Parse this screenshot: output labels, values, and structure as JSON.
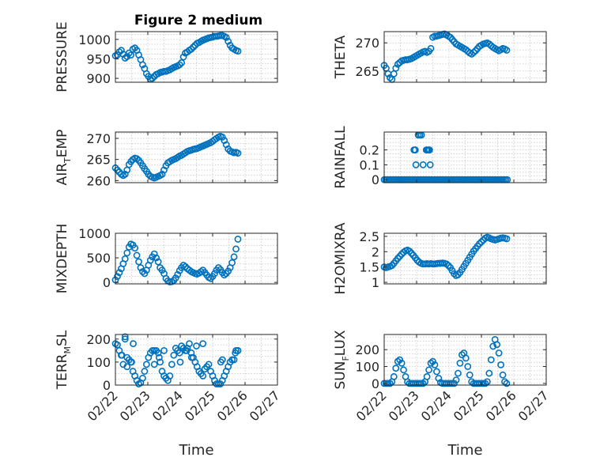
{
  "figure": {
    "title": "Figure 2 medium"
  },
  "chart_data": [
    {
      "type": "scatter",
      "ylabel": "PRESSURE",
      "xlim": [
        0,
        5
      ],
      "ylim": [
        890,
        1020
      ],
      "yticks": [
        900,
        950,
        1000
      ],
      "x": [
        0.0,
        0.06,
        0.12,
        0.18,
        0.24,
        0.3,
        0.36,
        0.42,
        0.48,
        0.54,
        0.6,
        0.66,
        0.72,
        0.78,
        0.84,
        0.9,
        0.96,
        1.02,
        1.08,
        1.14,
        1.2,
        1.26,
        1.32,
        1.38,
        1.44,
        1.5,
        1.56,
        1.62,
        1.68,
        1.74,
        1.8,
        1.86,
        1.92,
        1.98,
        2.04,
        2.1,
        2.16,
        2.22,
        2.28,
        2.34,
        2.4,
        2.46,
        2.52,
        2.58,
        2.64,
        2.7,
        2.76,
        2.82,
        2.88,
        2.94,
        3.0,
        3.06,
        3.12,
        3.18,
        3.24,
        3.3,
        3.36,
        3.42,
        3.48,
        3.54,
        3.6,
        3.66,
        3.72,
        3.78
      ],
      "y": [
        958,
        960,
        968,
        972,
        962,
        952,
        956,
        965,
        960,
        975,
        978,
        972,
        960,
        948,
        935,
        925,
        912,
        905,
        898,
        900,
        905,
        910,
        912,
        915,
        916,
        918,
        918,
        920,
        922,
        925,
        928,
        930,
        932,
        935,
        940,
        955,
        965,
        968,
        972,
        975,
        980,
        985,
        990,
        992,
        995,
        998,
        1000,
        1002,
        1004,
        1005,
        1006,
        1008,
        1008,
        1009,
        1010,
        1010,
        1008,
        1005,
        995,
        985,
        978,
        975,
        972,
        970
      ]
    },
    {
      "type": "scatter",
      "ylabel": "THETA",
      "xlim": [
        0,
        5
      ],
      "ylim": [
        263,
        272
      ],
      "yticks": [
        265,
        270
      ],
      "x": [
        0.0,
        0.06,
        0.12,
        0.18,
        0.24,
        0.3,
        0.36,
        0.42,
        0.48,
        0.54,
        0.6,
        0.66,
        0.72,
        0.78,
        0.84,
        0.9,
        0.96,
        1.02,
        1.08,
        1.14,
        1.2,
        1.26,
        1.32,
        1.38,
        1.44,
        1.5,
        1.56,
        1.62,
        1.68,
        1.74,
        1.8,
        1.86,
        1.92,
        1.98,
        2.04,
        2.1,
        2.16,
        2.22,
        2.28,
        2.34,
        2.4,
        2.46,
        2.52,
        2.58,
        2.64,
        2.7,
        2.76,
        2.82,
        2.88,
        2.94,
        3.0,
        3.06,
        3.12,
        3.18,
        3.24,
        3.3,
        3.36,
        3.42,
        3.48,
        3.54,
        3.6,
        3.66,
        3.72,
        3.78
      ],
      "y": [
        266.0,
        265.5,
        264.5,
        263.8,
        263.5,
        264.5,
        265.5,
        266.2,
        266.5,
        266.8,
        266.9,
        267.0,
        267.0,
        267.1,
        267.2,
        267.4,
        267.6,
        267.8,
        268.0,
        268.2,
        268.4,
        268.5,
        268.3,
        268.5,
        269.0,
        271.0,
        271.2,
        271.2,
        271.3,
        271.4,
        271.5,
        271.6,
        271.4,
        271.2,
        271.0,
        270.6,
        270.2,
        269.8,
        269.6,
        269.4,
        269.2,
        269.0,
        268.8,
        268.5,
        268.2,
        268.0,
        268.3,
        268.6,
        269.0,
        269.4,
        269.6,
        269.8,
        269.9,
        270.0,
        269.8,
        269.5,
        269.2,
        269.0,
        268.8,
        268.6,
        268.8,
        269.0,
        268.9,
        268.7
      ]
    },
    {
      "type": "scatter",
      "ylabel": "AIR",
      "ylabel_sub": "T",
      "ylabel_rest": "EMP",
      "xlim": [
        0,
        5
      ],
      "ylim": [
        259.5,
        271.5
      ],
      "yticks": [
        260,
        265,
        270
      ],
      "x": [
        0.0,
        0.06,
        0.12,
        0.18,
        0.24,
        0.3,
        0.36,
        0.42,
        0.48,
        0.54,
        0.6,
        0.66,
        0.72,
        0.78,
        0.84,
        0.9,
        0.96,
        1.02,
        1.08,
        1.14,
        1.2,
        1.26,
        1.32,
        1.38,
        1.44,
        1.5,
        1.56,
        1.62,
        1.68,
        1.74,
        1.8,
        1.86,
        1.92,
        1.98,
        2.04,
        2.1,
        2.16,
        2.22,
        2.28,
        2.34,
        2.4,
        2.46,
        2.52,
        2.58,
        2.64,
        2.7,
        2.76,
        2.82,
        2.88,
        2.94,
        3.0,
        3.06,
        3.12,
        3.18,
        3.24,
        3.3,
        3.36,
        3.42,
        3.48,
        3.54,
        3.6,
        3.66,
        3.72,
        3.78
      ],
      "y": [
        263.0,
        262.5,
        262.0,
        261.5,
        261.2,
        261.5,
        262.5,
        263.8,
        264.5,
        265.0,
        265.3,
        265.2,
        264.8,
        264.2,
        263.5,
        262.8,
        262.2,
        261.5,
        261.0,
        260.8,
        260.6,
        260.8,
        261.0,
        261.2,
        261.5,
        262.5,
        263.5,
        264.2,
        264.5,
        264.8,
        265.0,
        265.2,
        265.5,
        265.8,
        266.0,
        266.3,
        266.6,
        266.9,
        267.1,
        267.2,
        267.4,
        267.5,
        267.6,
        267.8,
        268.0,
        268.2,
        268.4,
        268.6,
        268.8,
        269.0,
        269.3,
        269.7,
        270.0,
        270.3,
        270.5,
        270.3,
        269.5,
        268.5,
        267.5,
        267.0,
        266.8,
        266.6,
        266.7,
        266.5
      ]
    },
    {
      "type": "scatter",
      "ylabel": "RAINFALL",
      "xlim": [
        0,
        5
      ],
      "ylim": [
        -0.02,
        0.32
      ],
      "yticks": [
        0,
        0.1,
        0.2
      ],
      "x": [
        0.0,
        0.05,
        0.1,
        0.15,
        0.2,
        0.25,
        0.3,
        0.35,
        0.4,
        0.45,
        0.5,
        0.55,
        0.6,
        0.65,
        0.7,
        0.75,
        0.8,
        0.85,
        0.9,
        0.95,
        1.0,
        1.05,
        1.1,
        1.15,
        1.2,
        1.25,
        1.3,
        1.35,
        1.4,
        1.45,
        1.5,
        1.55,
        1.6,
        1.65,
        1.7,
        1.75,
        1.8,
        1.85,
        1.9,
        1.95,
        2.0,
        2.05,
        2.1,
        2.15,
        2.2,
        2.25,
        2.3,
        2.35,
        2.4,
        2.45,
        2.5,
        2.55,
        2.6,
        2.65,
        2.7,
        2.75,
        2.8,
        2.85,
        2.9,
        2.95,
        3.0,
        3.05,
        3.1,
        3.15,
        3.2,
        3.25,
        3.3,
        3.35,
        3.4,
        3.45,
        3.5,
        3.55,
        3.6,
        3.65,
        3.7,
        3.75,
        3.8,
        0.92,
        0.95,
        0.98,
        0.96,
        1.05,
        1.1,
        1.15,
        1.2,
        1.3,
        1.33,
        1.36,
        1.39,
        1.42,
        1.4
      ],
      "y": [
        0,
        0,
        0,
        0,
        0,
        0,
        0,
        0,
        0,
        0,
        0,
        0,
        0,
        0,
        0,
        0,
        0,
        0,
        0,
        0,
        0,
        0,
        0,
        0,
        0,
        0,
        0,
        0,
        0,
        0,
        0,
        0,
        0,
        0,
        0,
        0,
        0,
        0,
        0,
        0,
        0,
        0,
        0,
        0,
        0,
        0,
        0,
        0,
        0,
        0,
        0,
        0,
        0,
        0,
        0,
        0,
        0,
        0,
        0,
        0,
        0,
        0,
        0,
        0,
        0,
        0,
        0,
        0,
        0,
        0,
        0,
        0,
        0,
        0,
        0,
        0,
        0,
        0.2,
        0.2,
        0.1,
        0.2,
        0.3,
        0.3,
        0.3,
        0.1,
        0.2,
        0.2,
        0.2,
        0.2,
        0.1,
        0.2
      ]
    },
    {
      "type": "scatter",
      "ylabel": "MIXDEPTH",
      "xlim": [
        0,
        5
      ],
      "ylim": [
        -30,
        1000
      ],
      "yticks": [
        0,
        500,
        1000
      ],
      "x": [
        0.0,
        0.06,
        0.12,
        0.18,
        0.24,
        0.3,
        0.36,
        0.42,
        0.48,
        0.54,
        0.6,
        0.66,
        0.72,
        0.78,
        0.84,
        0.9,
        0.96,
        1.02,
        1.08,
        1.14,
        1.2,
        1.26,
        1.32,
        1.38,
        1.44,
        1.5,
        1.56,
        1.62,
        1.68,
        1.74,
        1.8,
        1.86,
        1.92,
        1.98,
        2.04,
        2.1,
        2.16,
        2.22,
        2.28,
        2.34,
        2.4,
        2.46,
        2.52,
        2.58,
        2.64,
        2.7,
        2.76,
        2.82,
        2.88,
        2.94,
        3.0,
        3.06,
        3.12,
        3.18,
        3.24,
        3.3,
        3.36,
        3.42,
        3.48,
        3.54,
        3.6,
        3.66,
        3.72,
        3.78
      ],
      "y": [
        50,
        120,
        200,
        280,
        380,
        480,
        600,
        720,
        780,
        760,
        700,
        550,
        420,
        300,
        220,
        180,
        250,
        350,
        450,
        520,
        580,
        500,
        420,
        300,
        250,
        180,
        80,
        30,
        10,
        15,
        40,
        90,
        160,
        240,
        300,
        350,
        320,
        280,
        250,
        220,
        200,
        180,
        170,
        190,
        220,
        250,
        200,
        150,
        100,
        80,
        120,
        180,
        250,
        300,
        260,
        200,
        150,
        180,
        230,
        300,
        400,
        520,
        680,
        880
      ]
    },
    {
      "type": "scatter",
      "ylabel": "H2OMIXRA",
      "xlim": [
        0,
        5
      ],
      "ylim": [
        0.95,
        2.6
      ],
      "yticks": [
        1,
        1.5,
        2,
        2.5
      ],
      "x": [
        0.0,
        0.06,
        0.12,
        0.18,
        0.24,
        0.3,
        0.36,
        0.42,
        0.48,
        0.54,
        0.6,
        0.66,
        0.72,
        0.78,
        0.84,
        0.9,
        0.96,
        1.02,
        1.08,
        1.14,
        1.2,
        1.26,
        1.32,
        1.38,
        1.44,
        1.5,
        1.56,
        1.62,
        1.68,
        1.74,
        1.8,
        1.86,
        1.92,
        1.98,
        2.04,
        2.1,
        2.16,
        2.22,
        2.28,
        2.34,
        2.4,
        2.46,
        2.52,
        2.58,
        2.64,
        2.7,
        2.76,
        2.82,
        2.88,
        2.94,
        3.0,
        3.06,
        3.12,
        3.18,
        3.24,
        3.3,
        3.36,
        3.42,
        3.48,
        3.54,
        3.6,
        3.66,
        3.72,
        3.78
      ],
      "y": [
        1.5,
        1.48,
        1.5,
        1.52,
        1.55,
        1.62,
        1.7,
        1.78,
        1.85,
        1.92,
        1.98,
        2.03,
        2.05,
        2.02,
        1.95,
        1.88,
        1.8,
        1.72,
        1.66,
        1.62,
        1.6,
        1.6,
        1.61,
        1.6,
        1.61,
        1.6,
        1.6,
        1.61,
        1.62,
        1.62,
        1.63,
        1.62,
        1.6,
        1.55,
        1.48,
        1.38,
        1.28,
        1.22,
        1.25,
        1.32,
        1.42,
        1.52,
        1.62,
        1.72,
        1.82,
        1.92,
        2.02,
        2.1,
        2.18,
        2.26,
        2.32,
        2.38,
        2.44,
        2.47,
        2.45,
        2.42,
        2.4,
        2.38,
        2.4,
        2.42,
        2.44,
        2.45,
        2.44,
        2.42
      ]
    },
    {
      "type": "scatter",
      "ylabel": "TERR",
      "ylabel_sub": "M",
      "ylabel_rest": "SL",
      "xlim": [
        0,
        5
      ],
      "ylim": [
        0,
        220
      ],
      "yticks": [
        0,
        100,
        200
      ],
      "x": [
        0.0,
        0.06,
        0.12,
        0.18,
        0.24,
        0.3,
        0.36,
        0.42,
        0.48,
        0.54,
        0.6,
        0.66,
        0.72,
        0.78,
        0.84,
        0.9,
        0.96,
        1.02,
        1.08,
        1.14,
        1.2,
        1.26,
        1.32,
        1.38,
        1.44,
        1.5,
        1.56,
        1.62,
        1.68,
        1.74,
        1.8,
        1.86,
        1.92,
        1.98,
        2.04,
        2.1,
        2.16,
        2.22,
        2.28,
        2.34,
        2.4,
        2.46,
        2.52,
        2.58,
        2.64,
        2.7,
        2.76,
        2.82,
        2.88,
        2.94,
        3.0,
        3.06,
        3.12,
        3.18,
        3.24,
        3.3,
        3.36,
        3.42,
        3.48,
        3.54,
        3.6,
        3.66,
        3.72,
        3.78,
        0.3,
        0.36,
        0.2,
        0.5,
        0.55,
        1.2,
        1.35,
        1.5,
        2.0,
        2.2,
        2.35,
        2.5,
        2.7,
        3.25,
        3.3,
        3.7,
        3.78
      ],
      "y": [
        180,
        175,
        150,
        130,
        90,
        200,
        120,
        110,
        100,
        60,
        40,
        20,
        5,
        10,
        30,
        60,
        90,
        120,
        140,
        150,
        150,
        150,
        140,
        100,
        60,
        40,
        30,
        20,
        40,
        90,
        130,
        160,
        150,
        140,
        170,
        160,
        150,
        160,
        180,
        140,
        120,
        100,
        80,
        60,
        50,
        40,
        70,
        80,
        90,
        60,
        40,
        20,
        5,
        5,
        5,
        20,
        40,
        60,
        80,
        100,
        110,
        110,
        150,
        150,
        210,
        80,
        130,
        100,
        180,
        90,
        120,
        150,
        100,
        150,
        120,
        170,
        180,
        100,
        110,
        140,
        150
      ]
    },
    {
      "type": "scatter",
      "ylabel": "SUN",
      "ylabel_sub": "F",
      "ylabel_rest": "LUX",
      "xlim": [
        0,
        5
      ],
      "ylim": [
        -10,
        290
      ],
      "yticks": [
        0,
        100,
        200
      ],
      "x": [
        0.0,
        0.06,
        0.12,
        0.18,
        0.24,
        0.3,
        0.36,
        0.42,
        0.48,
        0.54,
        0.6,
        0.66,
        0.72,
        0.78,
        0.84,
        0.9,
        0.96,
        1.02,
        1.08,
        1.14,
        1.2,
        1.26,
        1.32,
        1.38,
        1.44,
        1.5,
        1.56,
        1.62,
        1.68,
        1.74,
        1.8,
        1.86,
        1.92,
        1.98,
        2.04,
        2.1,
        2.16,
        2.22,
        2.28,
        2.34,
        2.4,
        2.46,
        2.52,
        2.58,
        2.64,
        2.7,
        2.76,
        2.82,
        2.88,
        2.94,
        3.0,
        3.06,
        3.12,
        3.18,
        3.24,
        3.3,
        3.36,
        3.42,
        3.48,
        3.54,
        3.6,
        3.66,
        3.72,
        3.78
      ],
      "y": [
        0,
        0,
        0,
        0,
        10,
        40,
        90,
        130,
        140,
        120,
        80,
        40,
        10,
        0,
        0,
        0,
        0,
        0,
        0,
        0,
        0,
        10,
        40,
        80,
        120,
        130,
        110,
        70,
        30,
        5,
        0,
        0,
        0,
        0,
        0,
        0,
        0,
        20,
        60,
        120,
        170,
        180,
        150,
        100,
        50,
        10,
        0,
        0,
        0,
        0,
        0,
        0,
        0,
        10,
        60,
        140,
        220,
        260,
        230,
        180,
        110,
        50,
        10,
        0
      ]
    }
  ],
  "x_axis": {
    "ticks": [
      "02/22",
      "02/23",
      "02/24",
      "02/25",
      "02/26",
      "02/27"
    ],
    "label": "Time"
  },
  "colors": {
    "marker": "#0072bd",
    "axes": "#262626",
    "grid": "#c8c8c8"
  }
}
